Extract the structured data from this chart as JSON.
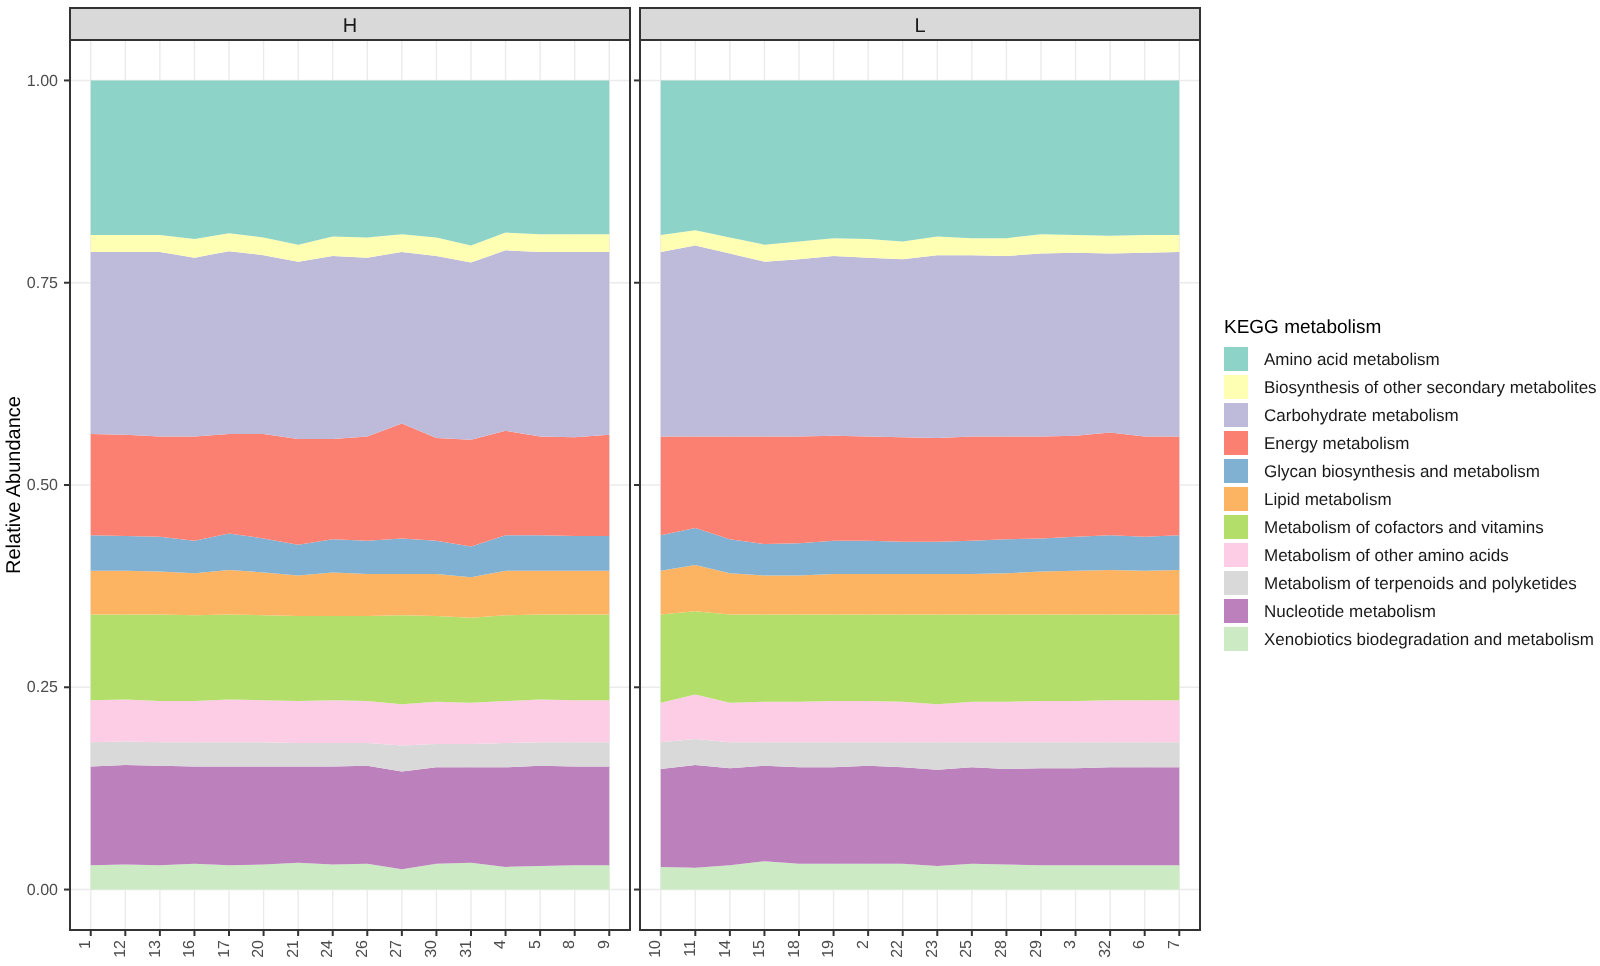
{
  "chart_data": [
    {
      "type": "area",
      "title": "H",
      "ylabel": "Relative Abundance",
      "stacked": true,
      "grid": true,
      "legend": false,
      "categories": [
        "1",
        "12",
        "13",
        "16",
        "17",
        "20",
        "21",
        "24",
        "26",
        "27",
        "30",
        "31",
        "4",
        "5",
        "8",
        "9"
      ],
      "ylim": [
        -0.05,
        1.05
      ],
      "yticks": [
        {
          "value": 0,
          "label": "0.00"
        },
        {
          "value": 0.25,
          "label": "0.25"
        },
        {
          "value": 0.5,
          "label": "0.50"
        },
        {
          "value": 0.75,
          "label": "0.75"
        },
        {
          "value": 1,
          "label": "1.00"
        }
      ],
      "series": [
        {
          "color": "#ccebc5",
          "values": [
            0.03,
            0.031,
            0.03,
            0.032,
            0.03,
            0.031,
            0.033,
            0.031,
            0.032,
            0.025,
            0.032,
            0.033,
            0.028,
            0.029,
            0.03,
            0.03
          ]
        },
        {
          "color": "#bc80bd",
          "values": [
            0.122,
            0.123,
            0.123,
            0.12,
            0.122,
            0.121,
            0.119,
            0.121,
            0.121,
            0.121,
            0.119,
            0.118,
            0.123,
            0.124,
            0.122,
            0.122
          ]
        },
        {
          "color": "#d9d9d9",
          "values": [
            0.03,
            0.029,
            0.029,
            0.03,
            0.03,
            0.03,
            0.029,
            0.029,
            0.028,
            0.032,
            0.029,
            0.029,
            0.03,
            0.029,
            0.03,
            0.03
          ]
        },
        {
          "color": "#fccde5",
          "values": [
            0.052,
            0.052,
            0.051,
            0.051,
            0.053,
            0.052,
            0.052,
            0.053,
            0.052,
            0.051,
            0.052,
            0.051,
            0.052,
            0.053,
            0.052,
            0.052
          ]
        },
        {
          "color": "#b3de69",
          "values": [
            0.106,
            0.105,
            0.107,
            0.106,
            0.105,
            0.105,
            0.105,
            0.104,
            0.105,
            0.11,
            0.106,
            0.105,
            0.106,
            0.105,
            0.106,
            0.106
          ]
        },
        {
          "color": "#fdb462",
          "values": [
            0.054,
            0.054,
            0.053,
            0.052,
            0.055,
            0.053,
            0.05,
            0.054,
            0.052,
            0.051,
            0.052,
            0.05,
            0.055,
            0.054,
            0.054,
            0.054
          ]
        },
        {
          "color": "#80b1d3",
          "values": [
            0.044,
            0.043,
            0.043,
            0.04,
            0.045,
            0.042,
            0.038,
            0.041,
            0.041,
            0.044,
            0.041,
            0.038,
            0.044,
            0.044,
            0.043,
            0.043
          ]
        },
        {
          "color": "#fb8072",
          "values": [
            0.125,
            0.125,
            0.124,
            0.129,
            0.123,
            0.129,
            0.131,
            0.124,
            0.129,
            0.142,
            0.127,
            0.132,
            0.129,
            0.122,
            0.122,
            0.125
          ]
        },
        {
          "color": "#bebada",
          "values": [
            0.225,
            0.226,
            0.228,
            0.221,
            0.226,
            0.221,
            0.219,
            0.226,
            0.221,
            0.212,
            0.225,
            0.219,
            0.223,
            0.228,
            0.229,
            0.226
          ]
        },
        {
          "color": "#ffffb3",
          "values": [
            0.021,
            0.021,
            0.021,
            0.023,
            0.022,
            0.022,
            0.021,
            0.024,
            0.025,
            0.022,
            0.023,
            0.021,
            0.022,
            0.022,
            0.022,
            0.022
          ]
        },
        {
          "color": "#8dd3c7",
          "values": [
            0.191,
            0.191,
            0.191,
            0.196,
            0.189,
            0.194,
            0.203,
            0.193,
            0.194,
            0.19,
            0.194,
            0.204,
            0.188,
            0.19,
            0.19,
            0.19
          ]
        }
      ]
    },
    {
      "type": "area",
      "title": "L",
      "stacked": true,
      "grid": true,
      "legend": "right",
      "legend_title": "KEGG metabolism",
      "tick_labels": "x",
      "categories": [
        "10",
        "11",
        "14",
        "15",
        "18",
        "19",
        "2",
        "22",
        "23",
        "25",
        "28",
        "29",
        "3",
        "32",
        "6",
        "7"
      ],
      "ylim": [
        -0.05,
        1.05
      ],
      "yticks": [
        {
          "value": 0,
          "label": null
        },
        {
          "value": 0.25,
          "label": null
        },
        {
          "value": 0.5,
          "label": null
        },
        {
          "value": 0.75,
          "label": null
        },
        {
          "value": 1,
          "label": null
        }
      ],
      "series": [
        {
          "name": "Xenobiotics biodegradation and metabolism",
          "color": "#ccebc5",
          "values": [
            0.028,
            0.027,
            0.03,
            0.035,
            0.032,
            0.032,
            0.032,
            0.032,
            0.029,
            0.032,
            0.031,
            0.03,
            0.03,
            0.03,
            0.03,
            0.03
          ]
        },
        {
          "name": "Nucleotide metabolism",
          "color": "#bc80bd",
          "values": [
            0.121,
            0.127,
            0.12,
            0.118,
            0.119,
            0.119,
            0.121,
            0.119,
            0.119,
            0.119,
            0.118,
            0.12,
            0.12,
            0.121,
            0.121,
            0.121
          ]
        },
        {
          "name": "Metabolism of terpenoids and polyketides",
          "color": "#d9d9d9",
          "values": [
            0.033,
            0.032,
            0.032,
            0.029,
            0.031,
            0.031,
            0.029,
            0.031,
            0.034,
            0.031,
            0.033,
            0.032,
            0.032,
            0.031,
            0.031,
            0.031
          ]
        },
        {
          "name": "Metabolism of other amino acids",
          "color": "#fccde5",
          "values": [
            0.049,
            0.055,
            0.049,
            0.05,
            0.05,
            0.051,
            0.051,
            0.05,
            0.047,
            0.05,
            0.05,
            0.051,
            0.051,
            0.052,
            0.052,
            0.052
          ]
        },
        {
          "name": "Metabolism of cofactors and vitamins",
          "color": "#b3de69",
          "values": [
            0.109,
            0.103,
            0.109,
            0.108,
            0.108,
            0.107,
            0.107,
            0.108,
            0.111,
            0.108,
            0.108,
            0.107,
            0.107,
            0.106,
            0.106,
            0.106
          ]
        },
        {
          "name": "Lipid metabolism",
          "color": "#fdb462",
          "values": [
            0.054,
            0.057,
            0.051,
            0.048,
            0.048,
            0.05,
            0.05,
            0.05,
            0.05,
            0.05,
            0.051,
            0.053,
            0.054,
            0.055,
            0.054,
            0.055
          ]
        },
        {
          "name": "Glycan biosynthesis and metabolism",
          "color": "#80b1d3",
          "values": [
            0.044,
            0.046,
            0.042,
            0.039,
            0.04,
            0.041,
            0.041,
            0.04,
            0.04,
            0.041,
            0.042,
            0.041,
            0.042,
            0.043,
            0.042,
            0.043
          ]
        },
        {
          "name": "Energy metabolism",
          "color": "#fb8072",
          "values": [
            0.122,
            0.113,
            0.127,
            0.133,
            0.132,
            0.13,
            0.129,
            0.129,
            0.128,
            0.129,
            0.127,
            0.126,
            0.125,
            0.127,
            0.124,
            0.122
          ]
        },
        {
          "name": "Carbohydrate metabolism",
          "color": "#bebada",
          "values": [
            0.228,
            0.236,
            0.226,
            0.216,
            0.219,
            0.222,
            0.221,
            0.22,
            0.226,
            0.224,
            0.223,
            0.226,
            0.226,
            0.221,
            0.227,
            0.228
          ]
        },
        {
          "name": "Biosynthesis of other secondary metabolites",
          "color": "#ffffb3",
          "values": [
            0.021,
            0.019,
            0.02,
            0.021,
            0.022,
            0.022,
            0.023,
            0.022,
            0.023,
            0.021,
            0.022,
            0.024,
            0.022,
            0.022,
            0.022,
            0.021
          ]
        },
        {
          "name": "Amino acid metabolism",
          "color": "#8dd3c7",
          "values": [
            0.191,
            0.185,
            0.194,
            0.203,
            0.199,
            0.195,
            0.196,
            0.199,
            0.193,
            0.195,
            0.195,
            0.19,
            0.191,
            0.192,
            0.191,
            0.191
          ]
        }
      ]
    }
  ]
}
